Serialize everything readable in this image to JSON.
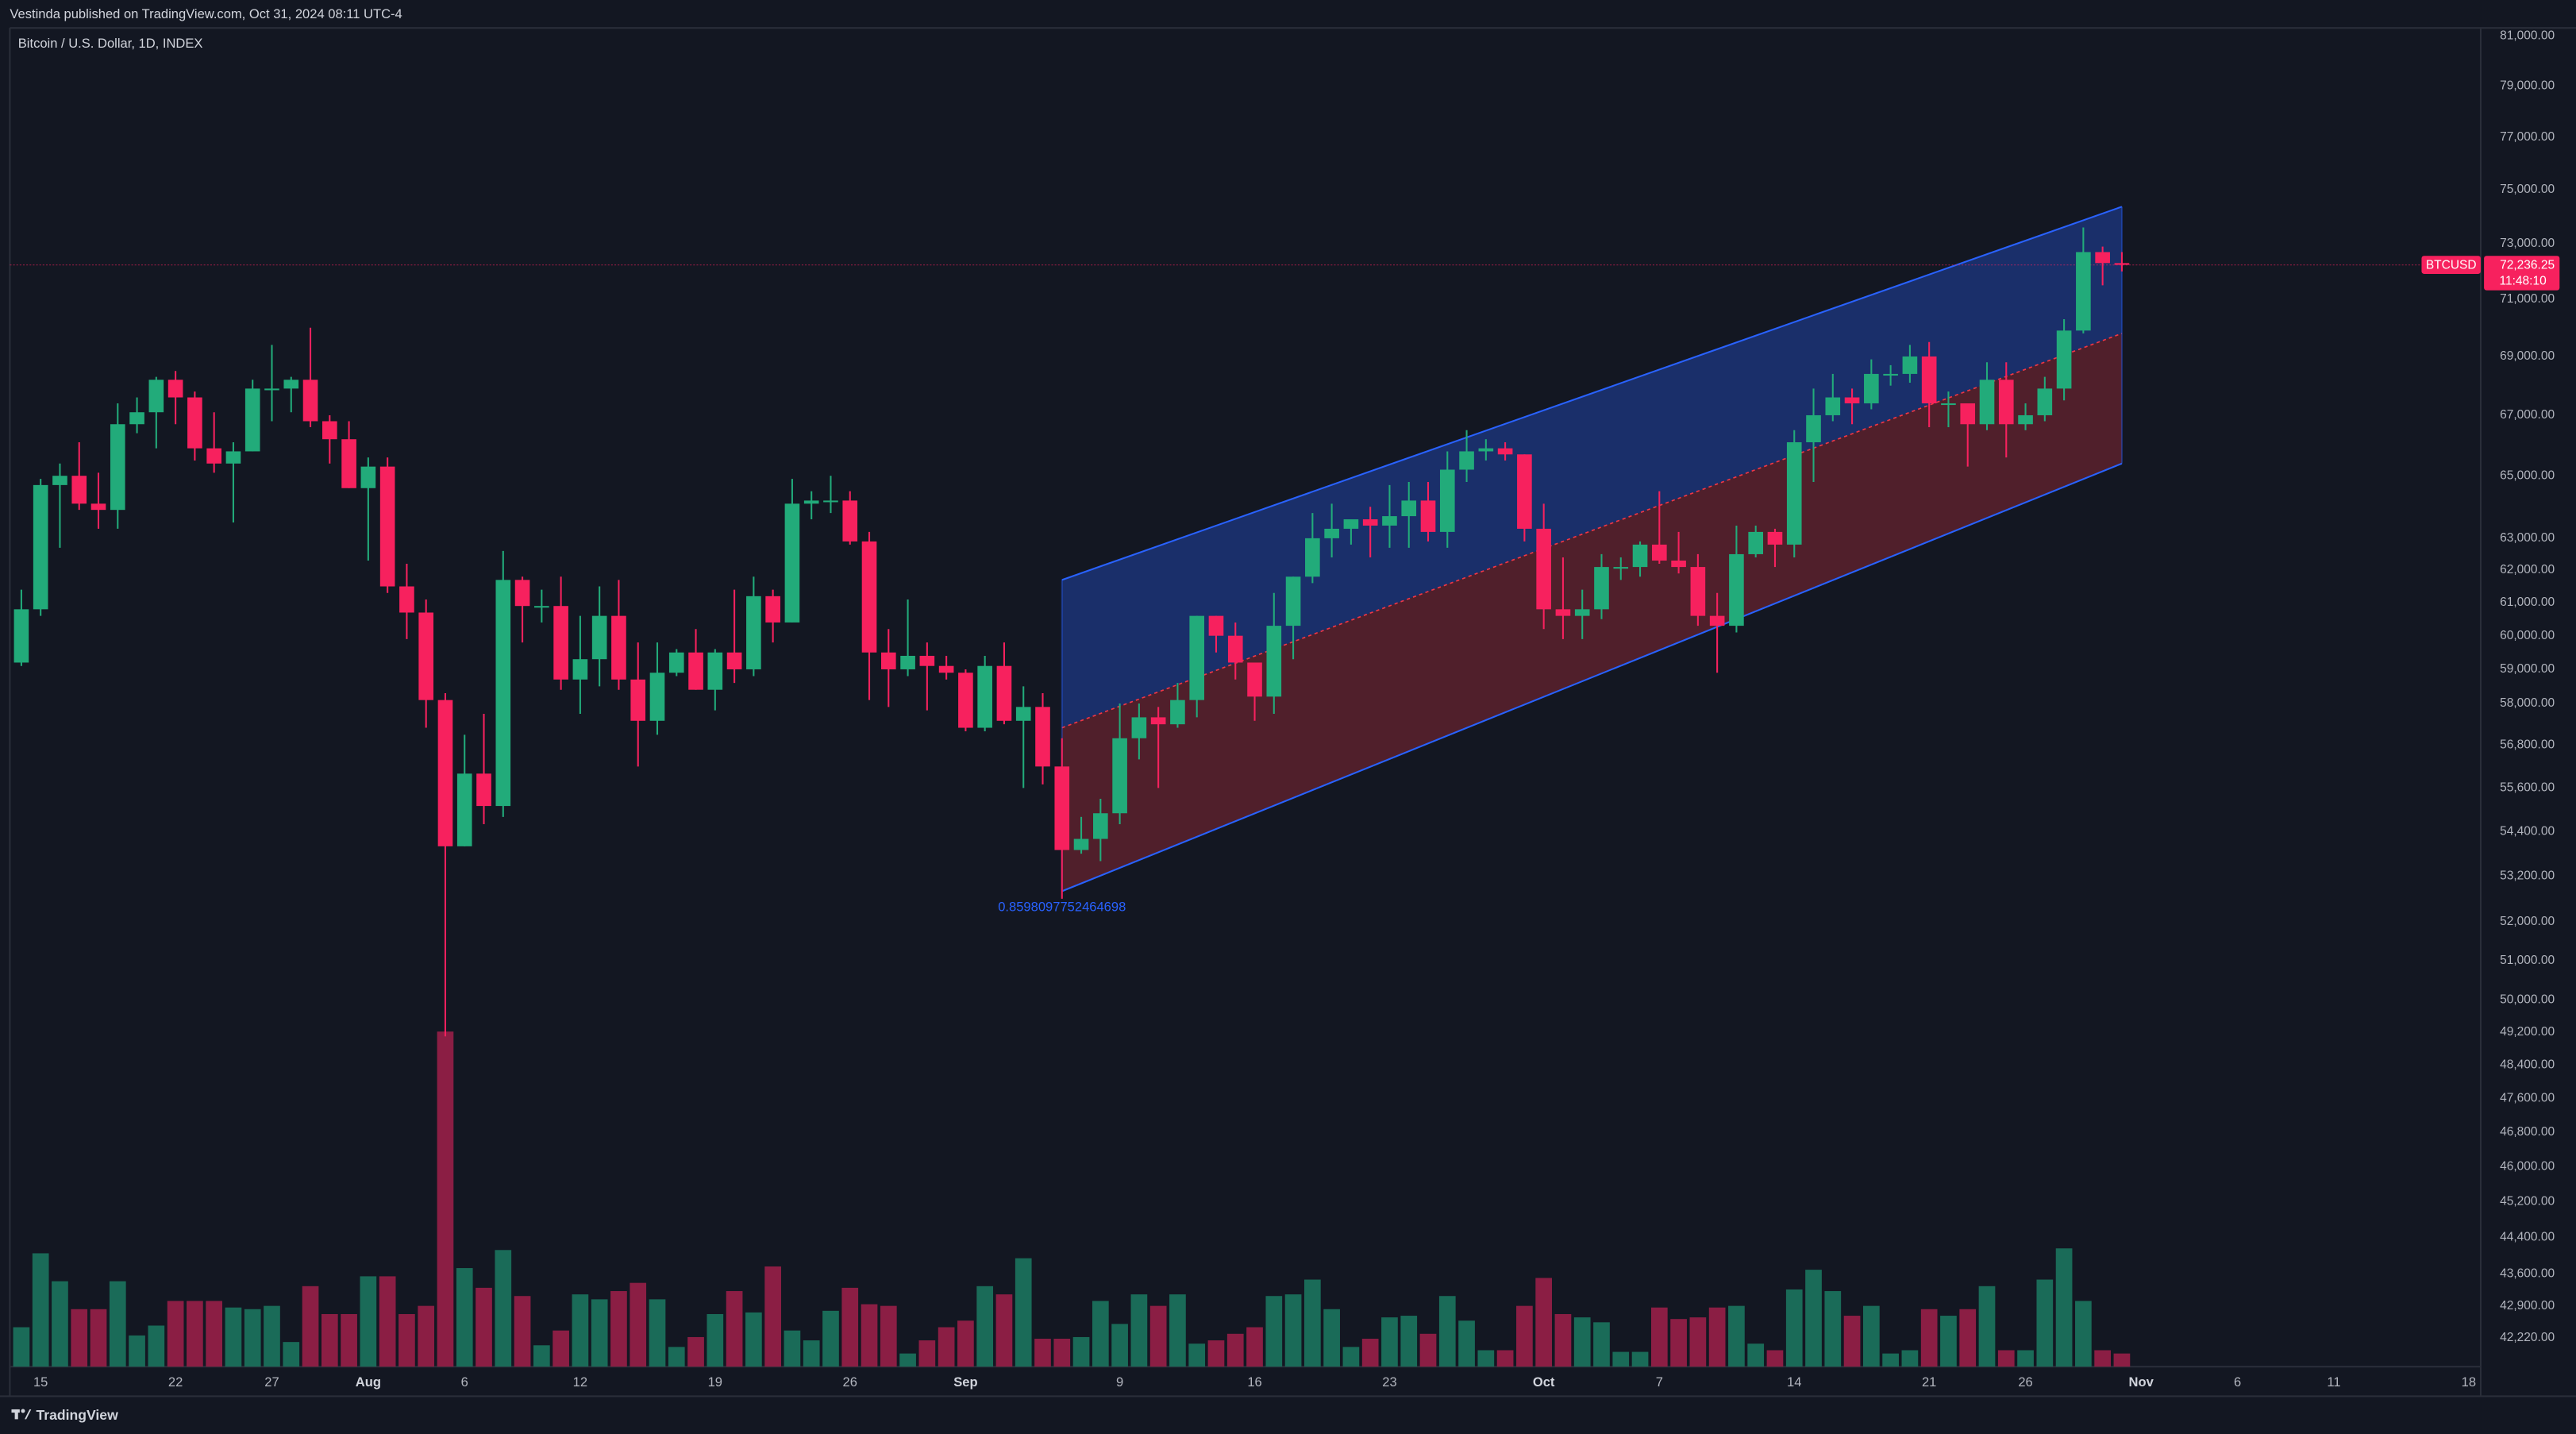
{
  "header": {
    "publisher": "Vestinda published on TradingView.com, Oct 31, 2024 08:11 UTC-4"
  },
  "chart_data": {
    "type": "candlestick",
    "title": "Bitcoin / U.S. Dollar, 1D, INDEX",
    "log_scale": true,
    "grid": false,
    "up_color": "#22ab7a",
    "down_color": "#f7215e",
    "volume_up_color": "#1a6b58",
    "volume_down_color": "#8b1e44",
    "ylim": [
      41620,
      81330
    ],
    "yticks": [
      {
        "value": 81000,
        "label": "81,000.00"
      },
      {
        "value": 79000,
        "label": "79,000.00"
      },
      {
        "value": 77000,
        "label": "77,000.00"
      },
      {
        "value": 75000,
        "label": "75,000.00"
      },
      {
        "value": 73000,
        "label": "73,000.00"
      },
      {
        "value": 71000,
        "label": "71,000.00"
      },
      {
        "value": 69000,
        "label": "69,000.00"
      },
      {
        "value": 67000,
        "label": "67,000.00"
      },
      {
        "value": 65000,
        "label": "65,000.00"
      },
      {
        "value": 63000,
        "label": "63,000.00"
      },
      {
        "value": 62000,
        "label": "62,000.00"
      },
      {
        "value": 61000,
        "label": "61,000.00"
      },
      {
        "value": 60000,
        "label": "60,000.00"
      },
      {
        "value": 59000,
        "label": "59,000.00"
      },
      {
        "value": 58000,
        "label": "58,000.00"
      },
      {
        "value": 56800,
        "label": "56,800.00"
      },
      {
        "value": 55600,
        "label": "55,600.00"
      },
      {
        "value": 54400,
        "label": "54,400.00"
      },
      {
        "value": 53200,
        "label": "53,200.00"
      },
      {
        "value": 52000,
        "label": "52,000.00"
      },
      {
        "value": 51000,
        "label": "51,000.00"
      },
      {
        "value": 50000,
        "label": "50,000.00"
      },
      {
        "value": 49200,
        "label": "49,200.00"
      },
      {
        "value": 48400,
        "label": "48,400.00"
      },
      {
        "value": 47600,
        "label": "47,600.00"
      },
      {
        "value": 46800,
        "label": "46,800.00"
      },
      {
        "value": 46000,
        "label": "46,000.00"
      },
      {
        "value": 45200,
        "label": "45,200.00"
      },
      {
        "value": 44400,
        "label": "44,400.00"
      },
      {
        "value": 43600,
        "label": "43,600.00"
      },
      {
        "value": 42900,
        "label": "42,900.00"
      },
      {
        "value": 42220,
        "label": "42,220.00"
      }
    ],
    "xticks": [
      {
        "value": 1,
        "label": "15"
      },
      {
        "value": 8,
        "label": "22"
      },
      {
        "value": 13,
        "label": "27"
      },
      {
        "value": 18,
        "label": "Aug"
      },
      {
        "value": 23,
        "label": "6"
      },
      {
        "value": 29,
        "label": "12"
      },
      {
        "value": 36,
        "label": "19"
      },
      {
        "value": 43,
        "label": "26"
      },
      {
        "value": 49,
        "label": "Sep"
      },
      {
        "value": 57,
        "label": "9"
      },
      {
        "value": 64,
        "label": "16"
      },
      {
        "value": 71,
        "label": "23"
      },
      {
        "value": 79,
        "label": "Oct"
      },
      {
        "value": 85,
        "label": "7"
      },
      {
        "value": 92,
        "label": "14"
      },
      {
        "value": 99,
        "label": "21"
      },
      {
        "value": 104,
        "label": "26"
      },
      {
        "value": 110,
        "label": "Nov"
      },
      {
        "value": 115,
        "label": "6"
      },
      {
        "value": 120,
        "label": "11"
      },
      {
        "value": 127,
        "label": "18"
      }
    ],
    "open": [
      59200,
      60800,
      64700,
      65000,
      64100,
      63900,
      66700,
      67100,
      68200,
      67600,
      65900,
      65400,
      65800,
      67900,
      67900,
      68200,
      66800,
      66200,
      64600,
      65300,
      61500,
      60700,
      58100,
      54000,
      56000,
      55100,
      61700,
      60900,
      60900,
      58700,
      59300,
      60600,
      58700,
      57500,
      58900,
      59500,
      58400,
      59500,
      59000,
      61200,
      60400,
      64100,
      64200,
      64200,
      62900,
      59500,
      59000,
      59400,
      59100,
      58900,
      57300,
      59100,
      57500,
      57900,
      56200,
      53900,
      54200,
      54900,
      57000,
      57600,
      57400,
      58100,
      60600,
      60000,
      59200,
      58200,
      60300,
      61800,
      63000,
      63300,
      63600,
      63400,
      63700,
      64200,
      63200,
      65200,
      65800,
      65900,
      65700,
      63300,
      60800,
      60600,
      60800,
      62100,
      62100,
      62800,
      62300,
      62100,
      60600,
      60300,
      62500,
      63200,
      62800,
      66100,
      67000,
      67600,
      67400,
      68400,
      68400,
      69000,
      67400,
      67400,
      66700,
      68200,
      66700,
      67000,
      67900,
      69900,
      72700,
      72300
    ],
    "high": [
      61400,
      64900,
      65400,
      66100,
      65100,
      67400,
      67600,
      68300,
      68500,
      67800,
      67100,
      66100,
      68200,
      69400,
      68300,
      70000,
      67000,
      66800,
      65600,
      65600,
      62200,
      61100,
      58300,
      57100,
      57700,
      62600,
      61800,
      61400,
      61800,
      60600,
      61500,
      61700,
      59800,
      59800,
      59600,
      60200,
      59600,
      61400,
      61800,
      61400,
      64900,
      64500,
      65000,
      64500,
      63200,
      60200,
      61100,
      59800,
      59400,
      59000,
      59400,
      59800,
      58500,
      58300,
      57000,
      54800,
      55300,
      58000,
      58000,
      57900,
      58600,
      60600,
      60600,
      60400,
      59200,
      61300,
      61800,
      63800,
      64100,
      63600,
      64000,
      64700,
      64800,
      64800,
      65800,
      66500,
      66200,
      66100,
      65700,
      64100,
      62400,
      61400,
      62500,
      62400,
      62900,
      64500,
      63200,
      62500,
      61300,
      63400,
      63400,
      63300,
      66500,
      67900,
      68400,
      67900,
      68900,
      68700,
      69400,
      69500,
      67800,
      67400,
      68800,
      68800,
      67400,
      68300,
      70300,
      73600,
      72900,
      72700
    ],
    "low": [
      59100,
      60600,
      62700,
      63900,
      63300,
      63300,
      66400,
      65900,
      66700,
      65500,
      65100,
      63500,
      65800,
      66800,
      67100,
      66600,
      65400,
      64600,
      62300,
      61300,
      59900,
      57300,
      49100,
      54000,
      54600,
      54800,
      59800,
      60400,
      58400,
      57700,
      58500,
      58400,
      56200,
      57100,
      58800,
      58400,
      57800,
      58600,
      58800,
      59800,
      60400,
      63600,
      63800,
      62800,
      58100,
      57900,
      58800,
      57800,
      58700,
      57200,
      57200,
      57400,
      55600,
      55700,
      52600,
      53800,
      53600,
      54600,
      56400,
      55600,
      57300,
      57600,
      59500,
      58700,
      57500,
      57700,
      59300,
      61600,
      62400,
      62800,
      62400,
      62700,
      62700,
      62900,
      62700,
      64800,
      65500,
      65500,
      62900,
      60200,
      59900,
      59900,
      60500,
      61700,
      61800,
      62200,
      61900,
      60300,
      58900,
      60100,
      62400,
      62100,
      62400,
      64800,
      66800,
      66700,
      67200,
      68000,
      68100,
      66600,
      66600,
      65300,
      66500,
      65600,
      66500,
      66800,
      67500,
      69800,
      71500,
      72000
    ],
    "close": [
      60800,
      64700,
      65000,
      64100,
      63900,
      66700,
      67100,
      68200,
      67600,
      65900,
      65400,
      65800,
      67900,
      67900,
      68200,
      66800,
      66200,
      64600,
      65300,
      61500,
      60700,
      58100,
      54000,
      56000,
      55100,
      61700,
      60900,
      60900,
      58700,
      59300,
      60600,
      58700,
      57500,
      58900,
      59500,
      58400,
      59500,
      59000,
      61200,
      60400,
      64100,
      64200,
      64200,
      62900,
      59500,
      59000,
      59400,
      59100,
      58900,
      57300,
      59100,
      57500,
      57900,
      56200,
      53900,
      54200,
      54900,
      57000,
      57600,
      57400,
      58100,
      60600,
      60000,
      59200,
      58200,
      60300,
      61800,
      63000,
      63300,
      63600,
      63400,
      63700,
      64200,
      63200,
      65200,
      65800,
      65900,
      65700,
      63300,
      60800,
      60600,
      60800,
      62100,
      62100,
      62800,
      62300,
      62100,
      60600,
      60300,
      62500,
      63200,
      62800,
      66100,
      67000,
      67600,
      67400,
      68400,
      68400,
      69000,
      67400,
      67400,
      66700,
      68200,
      66700,
      67000,
      67900,
      69900,
      72700,
      72300,
      72236.25
    ],
    "volume": [
      24,
      69,
      52,
      35,
      35,
      52,
      19,
      25,
      40,
      40,
      40,
      36,
      35,
      37,
      15,
      49,
      32,
      32,
      55,
      55,
      32,
      37,
      204,
      60,
      48,
      71,
      43,
      13,
      22,
      44,
      41,
      46,
      51,
      41,
      12,
      18,
      32,
      46,
      33,
      61,
      22,
      16,
      34,
      48,
      38,
      37,
      8,
      16,
      24,
      28,
      49,
      44,
      66,
      17,
      17,
      18,
      40,
      26,
      44,
      37,
      44,
      14,
      16,
      20,
      24,
      43,
      44,
      53,
      35,
      12,
      17,
      30,
      31,
      20,
      43,
      28,
      10,
      10,
      37,
      54,
      32,
      30,
      27,
      9,
      9,
      36,
      29,
      30,
      36,
      37,
      14,
      10,
      47,
      59,
      46,
      31,
      37,
      8,
      10,
      35,
      31,
      35,
      49,
      10,
      10,
      53,
      72,
      40,
      10,
      8
    ],
    "channel": {
      "start_index": 54,
      "end_index": 109,
      "upper": [
        61700,
        74370
      ],
      "middle": [
        57300,
        69800
      ],
      "lower": [
        52800,
        65400
      ],
      "label": "0.8598097752464698",
      "line_color": "#2962ff",
      "upper_fill": "#2962ff",
      "lower_fill": "#f23645"
    },
    "last_price": {
      "value": 72236.25,
      "label": "72,236.25"
    },
    "symbol": "BTCUSD",
    "countdown": "11:48:10"
  },
  "footer": {
    "brand": "TradingView"
  }
}
